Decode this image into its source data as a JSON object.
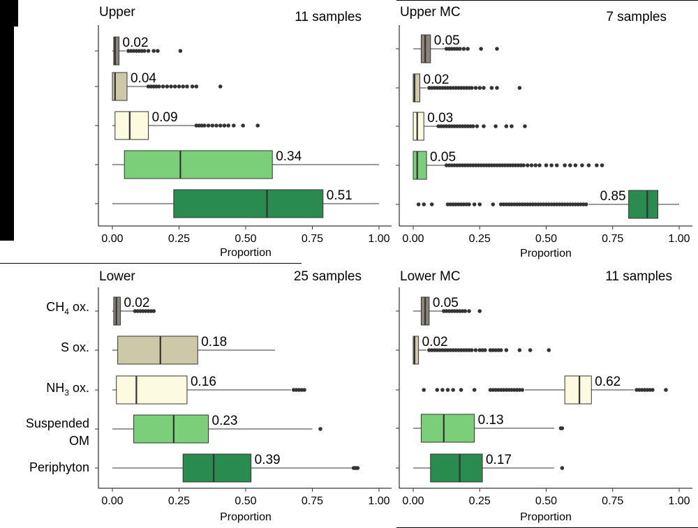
{
  "chart_data": [
    {
      "type": "boxplot",
      "orientation": "horizontal",
      "title": "Upper",
      "sample_label": "11 samples",
      "xlabel": "Proportion",
      "xlim": [
        0,
        1
      ],
      "xticks": [
        "0.00",
        "0.25",
        "0.50",
        "0.75",
        "1.00"
      ],
      "boxes": [
        {
          "q1": 0.005,
          "median": 0.01,
          "q3": 0.025,
          "whisker_low": 0.0,
          "whisker_high": 0.05,
          "outliers": [
            0.06,
            0.07,
            0.08,
            0.09,
            0.1,
            0.11,
            0.12,
            0.135,
            0.155,
            0.17,
            0.255
          ],
          "label": "0.02",
          "color": "#8a8577"
        },
        {
          "q1": 0.0,
          "median": 0.01,
          "q3": 0.055,
          "whisker_low": 0.0,
          "whisker_high": 0.13,
          "outliers": [
            0.135,
            0.145,
            0.155,
            0.165,
            0.175,
            0.19,
            0.205,
            0.22,
            0.235,
            0.25,
            0.265,
            0.28,
            0.3,
            0.315,
            0.405
          ],
          "label": "0.04",
          "color": "#cdc9a8"
        },
        {
          "q1": 0.01,
          "median": 0.065,
          "q3": 0.135,
          "whisker_low": 0.0,
          "whisker_high": 0.31,
          "outliers": [
            0.315,
            0.325,
            0.335,
            0.345,
            0.36,
            0.375,
            0.39,
            0.405,
            0.42,
            0.435,
            0.455,
            0.49,
            0.545
          ],
          "label": "0.09",
          "color": "#fdfbdf"
        },
        {
          "q1": 0.045,
          "median": 0.255,
          "q3": 0.6,
          "whisker_low": 0.0,
          "whisker_high": 1.0,
          "outliers": [],
          "label": "0.34",
          "color": "#7bcf78"
        },
        {
          "q1": 0.23,
          "median": 0.58,
          "q3": 0.79,
          "whisker_low": 0.0,
          "whisker_high": 1.0,
          "outliers": [],
          "label": "0.51",
          "color": "#2a8b4f"
        }
      ]
    },
    {
      "type": "boxplot",
      "orientation": "horizontal",
      "title": "Upper MC",
      "sample_label": "7 samples",
      "xlabel": "Proportion",
      "xlim": [
        0,
        1
      ],
      "xticks": [
        "0.00",
        "0.25",
        "0.50",
        "0.75",
        "1.00"
      ],
      "boxes": [
        {
          "q1": 0.03,
          "median": 0.045,
          "q3": 0.065,
          "whisker_low": 0.0,
          "whisker_high": 0.12,
          "outliers": [
            0.125,
            0.135,
            0.145,
            0.155,
            0.165,
            0.175,
            0.19,
            0.205,
            0.255,
            0.315
          ],
          "label": "0.05",
          "color": "#8a8577"
        },
        {
          "q1": 0.0,
          "median": 0.005,
          "q3": 0.025,
          "whisker_low": 0.0,
          "whisker_high": 0.05,
          "outliers": [
            0.06,
            0.07,
            0.08,
            0.09,
            0.1,
            0.11,
            0.12,
            0.13,
            0.14,
            0.15,
            0.16,
            0.17,
            0.18,
            0.19,
            0.2,
            0.21,
            0.22,
            0.235,
            0.25,
            0.265,
            0.295,
            0.315,
            0.4
          ],
          "label": "0.02",
          "color": "#cdc9a8"
        },
        {
          "q1": 0.0,
          "median": 0.015,
          "q3": 0.04,
          "whisker_low": 0.0,
          "whisker_high": 0.09,
          "outliers": [
            0.095,
            0.105,
            0.115,
            0.125,
            0.135,
            0.145,
            0.155,
            0.165,
            0.175,
            0.185,
            0.195,
            0.205,
            0.215,
            0.225,
            0.24,
            0.265,
            0.31,
            0.35,
            0.37,
            0.42
          ],
          "label": "0.03",
          "color": "#fdfbdf"
        },
        {
          "q1": 0.0,
          "median": 0.015,
          "q3": 0.05,
          "whisker_low": 0.0,
          "whisker_high": 0.12,
          "outliers": [
            0.125,
            0.135,
            0.145,
            0.155,
            0.165,
            0.175,
            0.185,
            0.195,
            0.205,
            0.215,
            0.225,
            0.235,
            0.245,
            0.255,
            0.265,
            0.275,
            0.285,
            0.295,
            0.305,
            0.315,
            0.325,
            0.335,
            0.345,
            0.355,
            0.365,
            0.375,
            0.385,
            0.395,
            0.405,
            0.415,
            0.43,
            0.445,
            0.46,
            0.475,
            0.5,
            0.52,
            0.54,
            0.57,
            0.59,
            0.61,
            0.635,
            0.66,
            0.69,
            0.71
          ],
          "label": "0.05",
          "color": "#7bcf78"
        },
        {
          "q1": 0.81,
          "median": 0.88,
          "q3": 0.92,
          "whisker_low": 0.66,
          "whisker_high": 1.0,
          "outliers": [
            0.02,
            0.04,
            0.07,
            0.13,
            0.14,
            0.15,
            0.16,
            0.17,
            0.18,
            0.19,
            0.2,
            0.21,
            0.23,
            0.25,
            0.3,
            0.33,
            0.34,
            0.35,
            0.36,
            0.37,
            0.38,
            0.39,
            0.4,
            0.41,
            0.42,
            0.43,
            0.44,
            0.45,
            0.46,
            0.47,
            0.48,
            0.49,
            0.5,
            0.51,
            0.52,
            0.53,
            0.54,
            0.55,
            0.56,
            0.57,
            0.58,
            0.59,
            0.6,
            0.61,
            0.62,
            0.63,
            0.64,
            0.65
          ],
          "label": "0.85",
          "label_side": "left",
          "color": "#2a8b4f"
        }
      ]
    },
    {
      "type": "boxplot",
      "orientation": "horizontal",
      "title": "Lower",
      "sample_label": "25 samples",
      "xlabel": "Proportion",
      "xlim": [
        0,
        1
      ],
      "xticks": [
        "0.00",
        "0.25",
        "0.50",
        "0.75",
        "1.00"
      ],
      "categories": [
        "CH4 ox.",
        "S ox.",
        "NH3 ox.",
        "Suspended OM",
        "Periphyton"
      ],
      "boxes": [
        {
          "q1": 0.005,
          "median": 0.015,
          "q3": 0.03,
          "whisker_low": 0.0,
          "whisker_high": 0.08,
          "outliers": [
            0.085,
            0.095,
            0.105,
            0.115,
            0.125,
            0.135,
            0.145,
            0.155
          ],
          "label": "0.02",
          "color": "#8a8577"
        },
        {
          "q1": 0.02,
          "median": 0.18,
          "q3": 0.32,
          "whisker_low": 0.0,
          "whisker_high": 0.61,
          "outliers": [],
          "label": "0.18",
          "color": "#cdc9a8"
        },
        {
          "q1": 0.015,
          "median": 0.09,
          "q3": 0.28,
          "whisker_low": 0.0,
          "whisker_high": 0.67,
          "outliers": [
            0.68,
            0.69,
            0.7,
            0.71,
            0.72
          ],
          "label": "0.16",
          "color": "#fdfbdf"
        },
        {
          "q1": 0.08,
          "median": 0.23,
          "q3": 0.36,
          "whisker_low": 0.0,
          "whisker_high": 0.75,
          "outliers": [
            0.78
          ],
          "label": "0.23",
          "color": "#7bcf78"
        },
        {
          "q1": 0.265,
          "median": 0.38,
          "q3": 0.52,
          "whisker_low": 0.0,
          "whisker_high": 0.9,
          "outliers": [
            0.905,
            0.91,
            0.915,
            0.92
          ],
          "label": "0.39",
          "color": "#2a8b4f"
        }
      ]
    },
    {
      "type": "boxplot",
      "orientation": "horizontal",
      "title": "Lower MC",
      "sample_label": "11 samples",
      "xlabel": "Proportion",
      "xlim": [
        0,
        1
      ],
      "xticks": [
        "0.00",
        "0.25",
        "0.50",
        "0.75",
        "1.00"
      ],
      "boxes": [
        {
          "q1": 0.03,
          "median": 0.045,
          "q3": 0.06,
          "whisker_low": 0.0,
          "whisker_high": 0.11,
          "outliers": [
            0.115,
            0.125,
            0.135,
            0.145,
            0.155,
            0.165,
            0.175,
            0.185,
            0.195,
            0.21,
            0.25
          ],
          "label": "0.05",
          "color": "#8a8577"
        },
        {
          "q1": 0.0,
          "median": 0.005,
          "q3": 0.02,
          "whisker_low": 0.0,
          "whisker_high": 0.05,
          "outliers": [
            0.06,
            0.07,
            0.08,
            0.09,
            0.1,
            0.11,
            0.12,
            0.13,
            0.14,
            0.15,
            0.16,
            0.17,
            0.18,
            0.19,
            0.2,
            0.21,
            0.22,
            0.235,
            0.25,
            0.26,
            0.27,
            0.29,
            0.3,
            0.31,
            0.32,
            0.33,
            0.35,
            0.4,
            0.44,
            0.51
          ],
          "label": "0.02",
          "color": "#cdc9a8"
        },
        {
          "q1": 0.57,
          "median": 0.625,
          "q3": 0.67,
          "whisker_low": 0.42,
          "whisker_high": 0.83,
          "outliers": [
            0.04,
            0.09,
            0.11,
            0.13,
            0.15,
            0.18,
            0.23,
            0.29,
            0.3,
            0.31,
            0.32,
            0.33,
            0.34,
            0.35,
            0.36,
            0.37,
            0.38,
            0.39,
            0.4,
            0.41,
            0.84,
            0.85,
            0.86,
            0.87,
            0.88,
            0.89,
            0.9,
            0.95
          ],
          "label": "0.62",
          "color": "#fdfbdf"
        },
        {
          "q1": 0.03,
          "median": 0.115,
          "q3": 0.23,
          "whisker_low": 0.0,
          "whisker_high": 0.53,
          "outliers": [
            0.555,
            0.56
          ],
          "label": "0.13",
          "color": "#7bcf78"
        },
        {
          "q1": 0.065,
          "median": 0.175,
          "q3": 0.26,
          "whisker_low": 0.0,
          "whisker_high": 0.53,
          "outliers": [
            0.56
          ],
          "label": "0.17",
          "color": "#2a8b4f"
        }
      ]
    }
  ]
}
